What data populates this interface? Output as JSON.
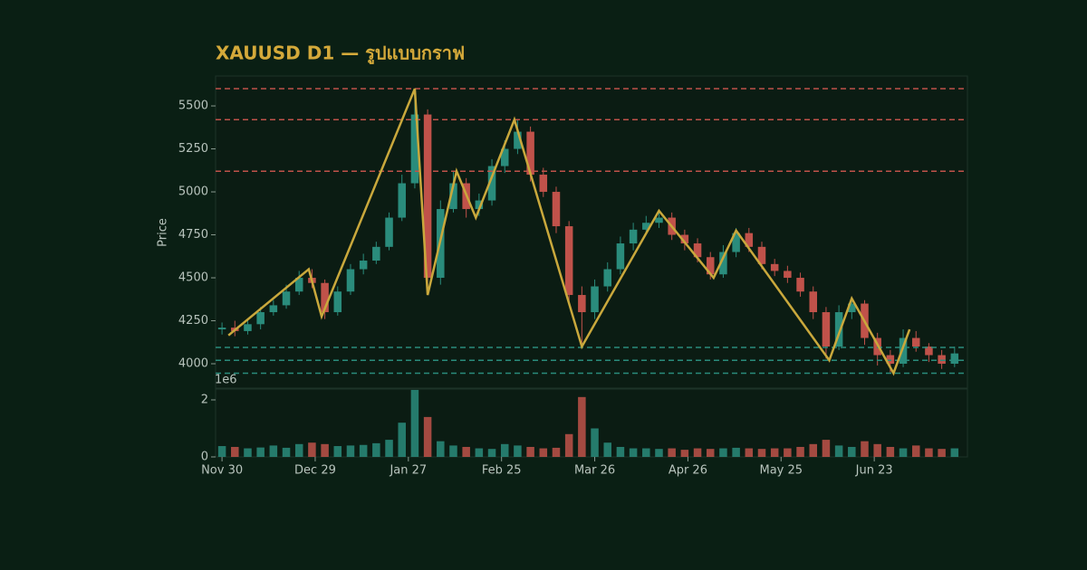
{
  "chart_data": {
    "type": "candlestick",
    "title": "XAUUSD D1 — รูปแบบกราฟ",
    "y_label": "Price",
    "x": [
      0,
      4,
      8,
      12,
      16,
      20,
      24,
      28,
      32,
      36,
      40,
      44,
      48,
      52,
      56,
      60,
      64,
      68,
      72,
      76,
      80,
      84,
      88,
      92,
      96,
      100,
      104,
      108,
      112,
      116,
      120,
      124,
      128,
      132,
      136,
      140,
      144,
      148,
      152,
      156,
      160,
      164,
      168,
      172,
      176,
      180,
      184,
      188,
      192,
      196,
      200,
      204,
      208,
      212,
      216,
      220,
      224,
      228
    ],
    "open": [
      4200,
      4210,
      4190,
      4230,
      4300,
      4340,
      4420,
      4500,
      4470,
      4300,
      4420,
      4550,
      4600,
      4680,
      4850,
      5050,
      5450,
      4500,
      4900,
      5050,
      4900,
      4950,
      5150,
      5250,
      5350,
      5100,
      5000,
      4800,
      4400,
      4300,
      4450,
      4550,
      4700,
      4780,
      4820,
      4850,
      4750,
      4700,
      4620,
      4520,
      4650,
      4760,
      4680,
      4580,
      4540,
      4500,
      4420,
      4300,
      4100,
      4300,
      4350,
      4150,
      4050,
      4000,
      4150,
      4100,
      4050,
      4000
    ],
    "high": [
      4240,
      4250,
      4260,
      4330,
      4370,
      4460,
      4540,
      4550,
      4490,
      4450,
      4580,
      4640,
      4710,
      4880,
      5100,
      5600,
      5480,
      4950,
      5120,
      5080,
      4990,
      5190,
      5300,
      5420,
      5380,
      5140,
      5030,
      4830,
      4450,
      4490,
      4590,
      4740,
      4820,
      4860,
      4890,
      4880,
      4780,
      4730,
      4650,
      4690,
      4790,
      4790,
      4710,
      4610,
      4570,
      4530,
      4450,
      4330,
      4340,
      4380,
      4370,
      4180,
      4080,
      4200,
      4190,
      4120,
      4080,
      4100
    ],
    "low": [
      4170,
      4160,
      4170,
      4200,
      4280,
      4320,
      4400,
      4440,
      4260,
      4280,
      4400,
      4520,
      4580,
      4660,
      4830,
      5020,
      4400,
      4460,
      4880,
      4850,
      4860,
      4920,
      5110,
      5220,
      5060,
      4970,
      4760,
      4350,
      4100,
      4260,
      4420,
      4520,
      4660,
      4750,
      4790,
      4720,
      4660,
      4590,
      4490,
      4500,
      4620,
      4650,
      4550,
      4510,
      4470,
      4390,
      4260,
      4030,
      4080,
      4260,
      4110,
      3990,
      3950,
      3980,
      4070,
      4010,
      3970,
      3980
    ],
    "close": [
      4210,
      4190,
      4230,
      4300,
      4340,
      4420,
      4500,
      4470,
      4300,
      4420,
      4550,
      4600,
      4680,
      4850,
      5050,
      5450,
      4500,
      4900,
      5050,
      4900,
      4950,
      5150,
      5250,
      5350,
      5100,
      5000,
      4800,
      4400,
      4300,
      4450,
      4550,
      4700,
      4780,
      4820,
      4850,
      4750,
      4700,
      4620,
      4520,
      4650,
      4760,
      4680,
      4580,
      4540,
      4500,
      4420,
      4300,
      4100,
      4300,
      4350,
      4150,
      4050,
      4000,
      4150,
      4100,
      4050,
      4000,
      4060
    ],
    "volume": [
      0.38,
      0.35,
      0.3,
      0.33,
      0.4,
      0.32,
      0.45,
      0.5,
      0.45,
      0.38,
      0.4,
      0.42,
      0.48,
      0.6,
      1.2,
      2.35,
      1.4,
      0.55,
      0.4,
      0.35,
      0.3,
      0.28,
      0.45,
      0.4,
      0.35,
      0.3,
      0.32,
      0.8,
      2.1,
      1.0,
      0.5,
      0.35,
      0.3,
      0.3,
      0.28,
      0.3,
      0.25,
      0.3,
      0.28,
      0.3,
      0.32,
      0.3,
      0.28,
      0.3,
      0.3,
      0.35,
      0.45,
      0.6,
      0.4,
      0.35,
      0.55,
      0.45,
      0.35,
      0.3,
      0.4,
      0.3,
      0.28,
      0.3
    ],
    "up_color": "#2a8c7c",
    "down_color": "#c0524a",
    "xlim": [
      -2,
      232
    ],
    "xticks": [
      {
        "value": 0,
        "label": "Nov 30"
      },
      {
        "value": 29,
        "label": "Dec 29"
      },
      {
        "value": 58,
        "label": "Jan 27"
      },
      {
        "value": 87,
        "label": "Feb 25"
      },
      {
        "value": 116,
        "label": "Mar 26"
      },
      {
        "value": 145,
        "label": "Apr 26"
      },
      {
        "value": 174,
        "label": "May 25"
      },
      {
        "value": 203,
        "label": "Jun 23"
      }
    ],
    "ylim": [
      3858,
      5674
    ],
    "yticks": [
      4000,
      4250,
      4500,
      4750,
      5000,
      5250,
      5500
    ],
    "volume_ylim": [
      0,
      2.38
    ],
    "volume_yticks": [
      0,
      2
    ],
    "volume_offset_label": "1e6",
    "zigzag": {
      "color": "#c9a83c",
      "x": [
        2,
        27,
        31,
        60,
        64,
        73,
        79,
        91,
        112,
        136,
        153,
        160,
        189,
        196,
        209,
        214
      ],
      "values": [
        4165,
        4550,
        4275,
        5600,
        4400,
        5120,
        4850,
        5420,
        4100,
        4890,
        4500,
        4775,
        4020,
        4380,
        3945,
        4200
      ]
    },
    "resistance": {
      "color": "#c0524a",
      "values": [
        5600,
        5420,
        5120
      ]
    },
    "support": {
      "color": "#2a8c7c",
      "values": [
        4095,
        4020,
        3945
      ]
    }
  }
}
